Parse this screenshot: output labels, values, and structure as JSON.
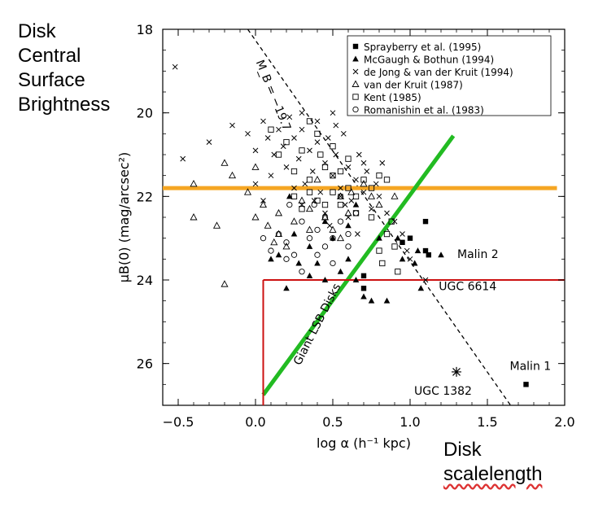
{
  "side_text": {
    "left": [
      "Disk",
      "Central",
      "Surface",
      "Brightness"
    ],
    "right": [
      "Disk",
      "scalelength"
    ]
  },
  "chart_data": {
    "type": "scatter",
    "xlabel": "log α (h⁻¹ kpc)",
    "ylabel": "μB(0) (mag/arcsec²)",
    "xlim": [
      -0.6,
      2.0
    ],
    "ylim": [
      27,
      18
    ],
    "x_ticks": [
      -0.5,
      0.0,
      0.5,
      1.0,
      1.5,
      2.0
    ],
    "x_tick_labels": [
      "−0.5",
      "0.0",
      "0.5",
      "1.0",
      "1.5",
      "2.0"
    ],
    "y_ticks": [
      18,
      20,
      22,
      24,
      26
    ],
    "y_tick_labels": [
      "18",
      "20",
      "22",
      "24",
      "26"
    ],
    "grid": false,
    "legend_position": "top-right",
    "series": [
      {
        "name": "Sprayberry et al. (1995)",
        "marker": "square-filled",
        "points": [
          [
            1.0,
            23.0
          ],
          [
            1.1,
            22.6
          ],
          [
            1.1,
            23.3
          ],
          [
            1.12,
            23.4
          ],
          [
            0.95,
            23.1
          ],
          [
            1.75,
            26.5
          ],
          [
            0.7,
            23.9
          ],
          [
            0.7,
            24.2
          ]
        ]
      },
      {
        "name": "McGaugh & Bothun (1994)",
        "marker": "triangle-filled",
        "points": [
          [
            0.22,
            22.0
          ],
          [
            0.25,
            22.9
          ],
          [
            0.35,
            23.2
          ],
          [
            0.4,
            23.6
          ],
          [
            0.45,
            22.6
          ],
          [
            0.5,
            23.0
          ],
          [
            0.6,
            22.7
          ],
          [
            0.65,
            22.2
          ],
          [
            0.55,
            23.8
          ],
          [
            0.6,
            23.5
          ],
          [
            0.7,
            24.4
          ],
          [
            0.75,
            24.5
          ],
          [
            0.1,
            23.5
          ],
          [
            0.2,
            24.2
          ],
          [
            0.28,
            23.6
          ],
          [
            0.35,
            23.9
          ],
          [
            0.15,
            23.4
          ],
          [
            0.45,
            24.0
          ],
          [
            0.65,
            24.0
          ],
          [
            0.92,
            23.0
          ],
          [
            1.03,
            23.6
          ],
          [
            1.2,
            23.4
          ],
          [
            1.07,
            24.2
          ],
          [
            0.85,
            24.5
          ],
          [
            0.95,
            23.5
          ],
          [
            1.05,
            23.3
          ],
          [
            0.8,
            23.0
          ]
        ]
      },
      {
        "name": "de Jong & van der Kruit (1994)",
        "marker": "x",
        "points": [
          [
            -0.52,
            18.9
          ],
          [
            -0.47,
            21.1
          ],
          [
            -0.3,
            20.7
          ],
          [
            -0.15,
            20.3
          ],
          [
            -0.05,
            20.5
          ],
          [
            0.0,
            20.9
          ],
          [
            0.05,
            20.2
          ],
          [
            0.08,
            20.6
          ],
          [
            0.12,
            21.0
          ],
          [
            0.15,
            20.4
          ],
          [
            0.18,
            20.8
          ],
          [
            0.2,
            21.3
          ],
          [
            0.22,
            20.1
          ],
          [
            0.25,
            20.6
          ],
          [
            0.28,
            21.1
          ],
          [
            0.3,
            20.4
          ],
          [
            0.32,
            21.7
          ],
          [
            0.35,
            20.9
          ],
          [
            0.37,
            21.4
          ],
          [
            0.4,
            20.7
          ],
          [
            0.42,
            21.9
          ],
          [
            0.45,
            21.2
          ],
          [
            0.47,
            20.6
          ],
          [
            0.5,
            21.5
          ],
          [
            0.52,
            21.0
          ],
          [
            0.55,
            21.8
          ],
          [
            0.57,
            20.5
          ],
          [
            0.6,
            21.3
          ],
          [
            0.62,
            22.1
          ],
          [
            0.65,
            21.6
          ],
          [
            0.67,
            21.0
          ],
          [
            0.7,
            21.9
          ],
          [
            0.72,
            21.4
          ],
          [
            0.75,
            22.3
          ],
          [
            0.78,
            21.7
          ],
          [
            0.8,
            22.0
          ],
          [
            0.82,
            21.2
          ],
          [
            0.85,
            22.4
          ],
          [
            0.9,
            22.6
          ],
          [
            0.95,
            22.9
          ],
          [
            0.98,
            23.3
          ],
          [
            0.55,
            22.0
          ],
          [
            0.6,
            22.5
          ],
          [
            0.48,
            22.7
          ],
          [
            0.66,
            22.9
          ],
          [
            0.1,
            21.5
          ],
          [
            0.0,
            21.7
          ],
          [
            0.05,
            22.1
          ],
          [
            0.25,
            21.8
          ],
          [
            0.3,
            22.2
          ],
          [
            0.45,
            22.4
          ],
          [
            0.7,
            21.2
          ],
          [
            0.52,
            20.3
          ],
          [
            0.58,
            22.2
          ],
          [
            0.38,
            22.1
          ],
          [
            1.0,
            23.5
          ],
          [
            1.1,
            24.0
          ],
          [
            0.4,
            20.2
          ],
          [
            0.5,
            20.0
          ],
          [
            0.3,
            20.0
          ]
        ]
      },
      {
        "name": "van der Kruit (1987)",
        "marker": "triangle-open",
        "points": [
          [
            -0.4,
            21.7
          ],
          [
            -0.2,
            21.2
          ],
          [
            -0.15,
            21.5
          ],
          [
            -0.05,
            21.9
          ],
          [
            0.0,
            21.3
          ],
          [
            0.05,
            22.2
          ],
          [
            -0.4,
            22.5
          ],
          [
            -0.25,
            22.7
          ],
          [
            0.0,
            22.5
          ],
          [
            0.08,
            22.7
          ],
          [
            0.12,
            23.1
          ],
          [
            0.15,
            22.9
          ],
          [
            0.2,
            23.2
          ],
          [
            0.25,
            22.6
          ],
          [
            0.3,
            22.1
          ],
          [
            0.35,
            22.3
          ],
          [
            0.4,
            21.6
          ],
          [
            0.45,
            22.5
          ],
          [
            0.5,
            22.8
          ],
          [
            0.55,
            23.0
          ],
          [
            0.6,
            22.4
          ],
          [
            0.62,
            21.9
          ],
          [
            0.7,
            21.7
          ],
          [
            0.75,
            22.0
          ],
          [
            -0.2,
            24.1
          ],
          [
            0.15,
            22.4
          ],
          [
            0.35,
            22.8
          ],
          [
            0.55,
            22.0
          ],
          [
            0.8,
            22.2
          ],
          [
            0.9,
            22.0
          ]
        ]
      },
      {
        "name": "Kent (1985)",
        "marker": "square-open",
        "points": [
          [
            0.1,
            20.4
          ],
          [
            0.15,
            21.0
          ],
          [
            0.2,
            20.7
          ],
          [
            0.25,
            21.4
          ],
          [
            0.3,
            20.9
          ],
          [
            0.35,
            21.6
          ],
          [
            0.4,
            20.5
          ],
          [
            0.45,
            21.3
          ],
          [
            0.5,
            21.9
          ],
          [
            0.55,
            21.4
          ],
          [
            0.6,
            21.8
          ],
          [
            0.65,
            22.0
          ],
          [
            0.7,
            21.6
          ],
          [
            0.75,
            21.8
          ],
          [
            0.8,
            21.5
          ],
          [
            0.85,
            21.6
          ],
          [
            0.25,
            22.0
          ],
          [
            0.3,
            22.3
          ],
          [
            0.35,
            21.9
          ],
          [
            0.4,
            22.1
          ],
          [
            0.55,
            22.2
          ],
          [
            0.65,
            22.4
          ],
          [
            0.75,
            22.5
          ],
          [
            0.85,
            22.9
          ],
          [
            0.9,
            23.2
          ],
          [
            0.82,
            23.6
          ],
          [
            0.92,
            23.8
          ],
          [
            0.8,
            23.3
          ],
          [
            0.88,
            22.6
          ],
          [
            0.45,
            22.2
          ],
          [
            0.5,
            20.8
          ],
          [
            0.6,
            21.1
          ],
          [
            0.35,
            20.2
          ],
          [
            0.42,
            21.0
          ],
          [
            0.5,
            21.5
          ]
        ]
      },
      {
        "name": "Romanishin et al. (1983)",
        "marker": "circle-open",
        "points": [
          [
            0.05,
            23.0
          ],
          [
            0.1,
            23.3
          ],
          [
            0.15,
            22.9
          ],
          [
            0.2,
            23.1
          ],
          [
            0.25,
            23.4
          ],
          [
            0.3,
            22.6
          ],
          [
            0.35,
            23.0
          ],
          [
            0.4,
            22.8
          ],
          [
            0.45,
            22.5
          ],
          [
            0.5,
            23.0
          ],
          [
            0.55,
            22.6
          ],
          [
            0.6,
            23.2
          ],
          [
            0.65,
            22.4
          ],
          [
            0.2,
            23.5
          ],
          [
            0.3,
            23.8
          ],
          [
            0.4,
            23.4
          ],
          [
            0.5,
            23.6
          ],
          [
            0.55,
            22.0
          ],
          [
            0.6,
            22.9
          ],
          [
            0.38,
            22.2
          ],
          [
            0.45,
            23.2
          ],
          [
            0.22,
            22.2
          ]
        ]
      }
    ],
    "special_points": [
      {
        "label": "Malin 2",
        "x": 1.2,
        "y": 23.4
      },
      {
        "label": "UGC 6614",
        "x": 1.07,
        "y": 24.2
      },
      {
        "label": "Malin 1",
        "x": 1.75,
        "y": 26.5
      },
      {
        "label": "UGC 1382",
        "x": 1.3,
        "y": 26.2,
        "marker": "asterisk"
      }
    ],
    "lines": [
      {
        "label": "M_B = −19.7",
        "style": "dashed",
        "color": "#000000",
        "from": [
          -0.05,
          18.0
        ],
        "to": [
          1.65,
          27.0
        ]
      },
      {
        "label": "",
        "style": "solid",
        "color": "#f5a623",
        "from": [
          -0.6,
          21.8
        ],
        "to": [
          1.95,
          21.8
        ]
      },
      {
        "label": "Giant LSB Disks",
        "style": "solid",
        "color": "#22bb22",
        "from": [
          0.05,
          26.75
        ],
        "to": [
          1.28,
          20.55
        ]
      },
      {
        "label": "",
        "style": "solid",
        "color": "#cc1111",
        "from": [
          0.05,
          27.0
        ],
        "to": [
          0.05,
          24.0
        ]
      },
      {
        "label": "",
        "style": "solid",
        "color": "#cc1111",
        "from": [
          0.05,
          24.0
        ],
        "to": [
          2.0,
          24.0
        ]
      }
    ]
  }
}
